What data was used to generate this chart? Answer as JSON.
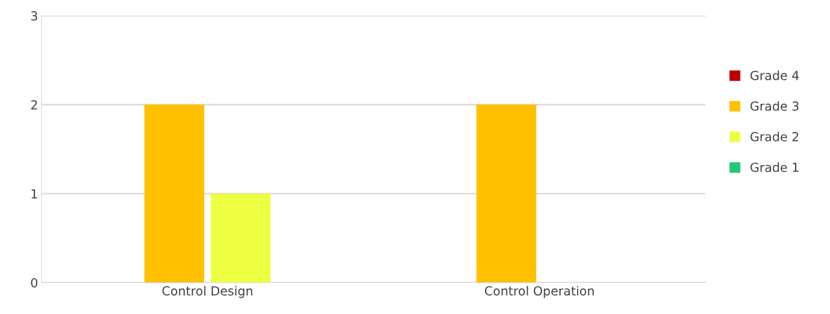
{
  "chart_data": {
    "type": "bar",
    "categories": [
      "Control Design",
      "Control Operation"
    ],
    "series": [
      {
        "name": "Grade 4",
        "color": "#c00000",
        "values": [
          0,
          0
        ]
      },
      {
        "name": "Grade 3",
        "color": "#ffc000",
        "values": [
          2,
          2
        ]
      },
      {
        "name": "Grade 2",
        "color": "#eeff41",
        "values": [
          1,
          0
        ]
      },
      {
        "name": "Grade 1",
        "color": "#22c77a",
        "values": [
          0,
          0
        ]
      }
    ],
    "ylim": [
      0,
      3
    ],
    "yticks": [
      0,
      1,
      2,
      3
    ],
    "grid": "y",
    "legend": "right"
  }
}
